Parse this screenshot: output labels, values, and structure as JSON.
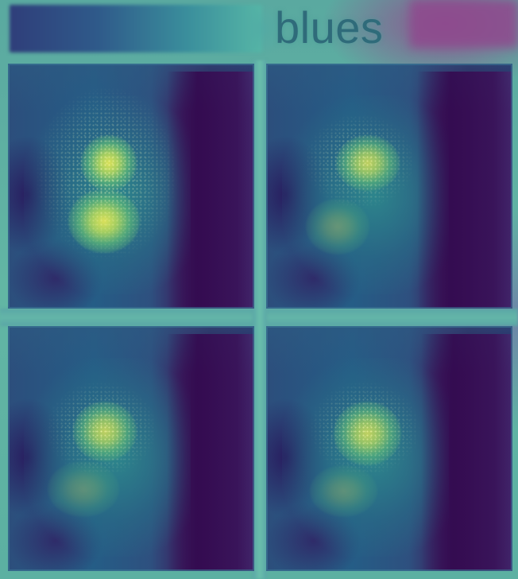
{
  "header": {
    "label": "blues",
    "colorbar_colors": [
      "#2f3e7a",
      "#2f5a8a",
      "#3a8e9c",
      "#56b6a6"
    ],
    "swatch_color": "#8e4a8e",
    "label_color": "#2f6b7a"
  },
  "panels": [
    {
      "id": "top-left",
      "hotspots": 2
    },
    {
      "id": "top-right",
      "hotspots": 1
    },
    {
      "id": "bottom-left",
      "hotspots": 1
    },
    {
      "id": "bottom-right",
      "hotspots": 1
    }
  ],
  "colors": {
    "background": "#5fb7a4",
    "low": "#300f4e",
    "mid": "#2e7f8c",
    "high": "#dce15a"
  }
}
